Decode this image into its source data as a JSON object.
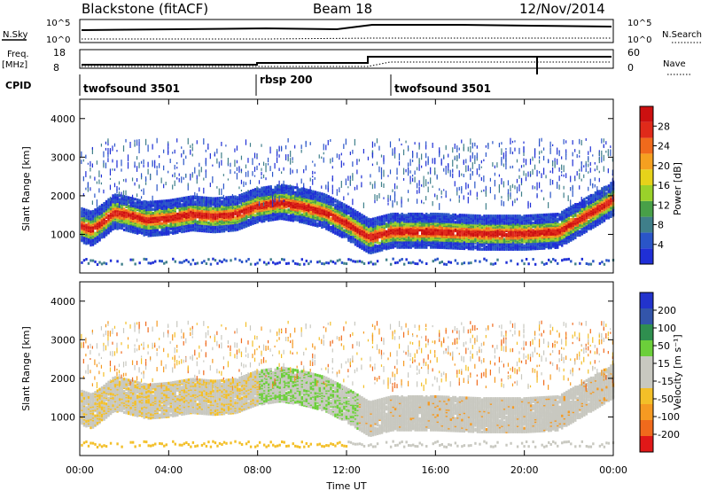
{
  "header": {
    "station": "Blackstone (fitACF)",
    "beam": "Beam 18",
    "date": "12/Nov/2014"
  },
  "top_panels": {
    "nsky_label": "N.Sky",
    "nsearch_label": "N.Search",
    "noise_ticks": [
      "10^5",
      "10^0"
    ],
    "freq_label_1": "Freq.",
    "freq_label_2": "[MHz]",
    "freq_ticks": [
      "18",
      "8"
    ],
    "nave_label": "Nave",
    "nave_ticks": [
      "60",
      "0"
    ],
    "cpid_label": "CPID",
    "cpid_segments": [
      {
        "name": "twofsound 3501",
        "start_hour": 0.0,
        "end_hour": 7.9
      },
      {
        "name": "rbsp 200",
        "start_hour": 7.9,
        "end_hour": 13.8
      },
      {
        "name": "twofsound 3501",
        "start_hour": 13.8,
        "end_hour": 24.0
      }
    ]
  },
  "x_axis": {
    "label": "Time UT",
    "ticks": [
      "00:00",
      "04:00",
      "08:00",
      "12:00",
      "16:00",
      "20:00",
      "00:00"
    ]
  },
  "colors": {
    "power_scale": [
      "#1f2fd6",
      "#2a55c8",
      "#3f7f8a",
      "#48a048",
      "#9ad12a",
      "#e6d21a",
      "#f5a020",
      "#f06a1c",
      "#e02a1a",
      "#cc1010"
    ],
    "velocity_scale": [
      "#2233cc",
      "#3355aa",
      "#2f8f4f",
      "#6ccf3a",
      "#c8c8c0",
      "#c8c8c0",
      "#f3bf28",
      "#f59a22",
      "#f06a1c",
      "#e01818"
    ]
  },
  "chart_data": [
    {
      "type": "heatmap",
      "panel": "power",
      "ylabel": "Slant Range [km]",
      "yticks": [
        "1000",
        "2000",
        "3000",
        "4000"
      ],
      "ylim": [
        0,
        4500
      ],
      "xlim_hours": [
        0,
        24
      ],
      "colorbar_label": "Power [dB]",
      "colorbar_ticks": [
        "4",
        "8",
        "12",
        "16",
        "20",
        "24",
        "28"
      ],
      "clim": [
        0,
        30
      ],
      "strong_echo_track_km": [
        [
          0.0,
          1200
        ],
        [
          0.5,
          1100
        ],
        [
          1.0,
          1300
        ],
        [
          1.5,
          1550
        ],
        [
          2.0,
          1500
        ],
        [
          3.0,
          1350
        ],
        [
          4.0,
          1400
        ],
        [
          5.0,
          1500
        ],
        [
          6.0,
          1450
        ],
        [
          7.0,
          1500
        ],
        [
          7.9,
          1700
        ],
        [
          9.0,
          1800
        ],
        [
          10.0,
          1700
        ],
        [
          11.0,
          1550
        ],
        [
          12.0,
          1250
        ],
        [
          13.0,
          900
        ],
        [
          14.0,
          1050
        ],
        [
          16.0,
          1050
        ],
        [
          18.0,
          1000
        ],
        [
          20.0,
          1000
        ],
        [
          21.5,
          1050
        ],
        [
          23.0,
          1550
        ],
        [
          24.0,
          1900
        ]
      ]
    },
    {
      "type": "heatmap",
      "panel": "velocity",
      "ylabel": "Slant Range [km]",
      "yticks": [
        "1000",
        "2000",
        "3000",
        "4000"
      ],
      "ylim": [
        0,
        4500
      ],
      "xlim_hours": [
        0,
        24
      ],
      "colorbar_label": "Velocity [m s⁻¹]",
      "colorbar_ticks": [
        "200",
        "100",
        "50",
        "15",
        "-15",
        "-50",
        "-100",
        "-200"
      ],
      "clim": [
        -250,
        250
      ]
    }
  ]
}
